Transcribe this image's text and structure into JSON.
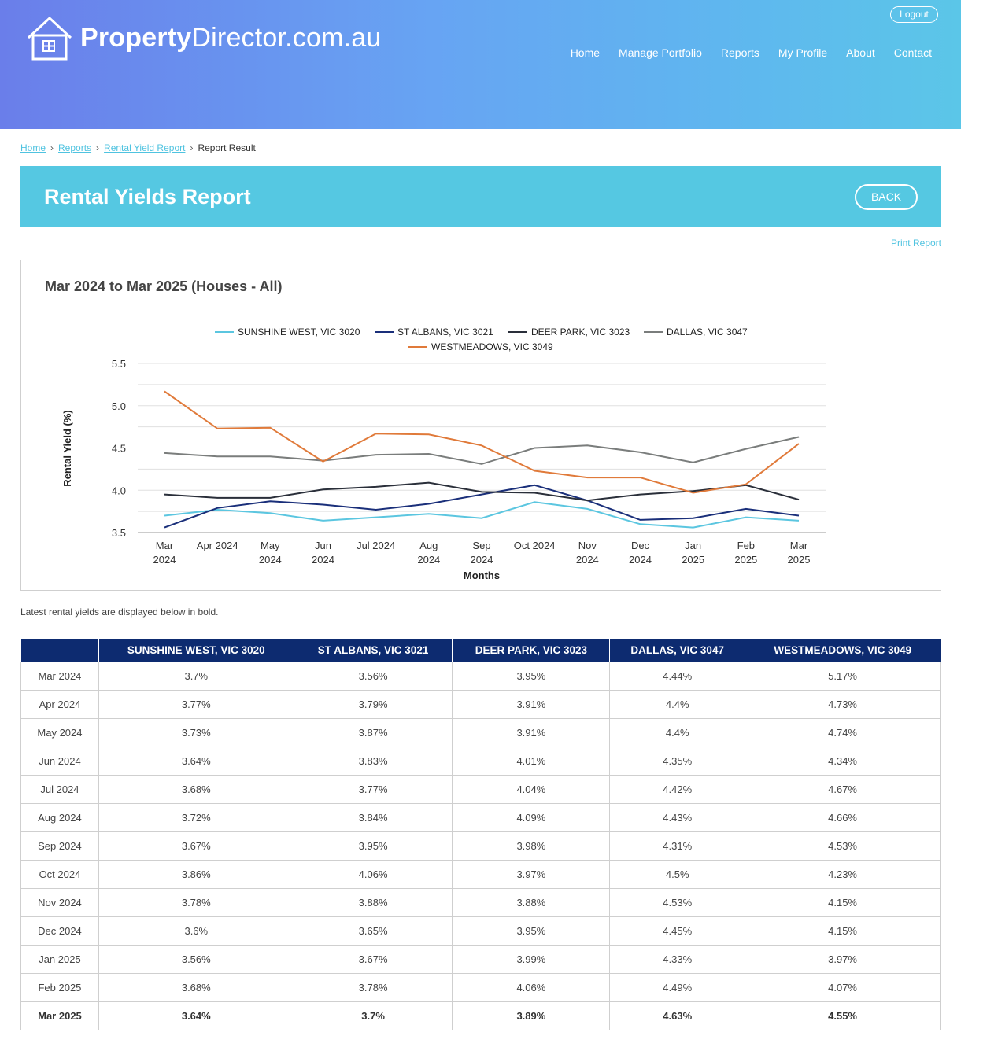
{
  "header": {
    "logo_bold": "Property",
    "logo_rest": "Director.com.au",
    "logout_label": "Logout",
    "nav": [
      "Home",
      "Manage Portfolio",
      "Reports",
      "My Profile",
      "About",
      "Contact"
    ]
  },
  "breadcrumb": {
    "items": [
      "Home",
      "Reports",
      "Rental Yield Report"
    ],
    "current": "Report Result"
  },
  "page": {
    "title": "Rental Yields Report",
    "back_label": "BACK",
    "print_label": "Print Report",
    "note": "Latest rental yields are displayed below in bold."
  },
  "chart_data": {
    "type": "line",
    "title": "Mar 2024 to Mar 2025 (Houses - All)",
    "xlabel": "Months",
    "ylabel": "Rental Yield (%)",
    "ylim": [
      3.5,
      5.5
    ],
    "yticks": [
      "3.5",
      "4.0",
      "4.5",
      "5.0",
      "5.5"
    ],
    "grid": true,
    "legend": "top-center",
    "x": [
      "Mar 2024",
      "Apr 2024",
      "May 2024",
      "Jun 2024",
      "Jul 2024",
      "Aug 2024",
      "Sep 2024",
      "Oct 2024",
      "Nov 2024",
      "Dec 2024",
      "Jan 2025",
      "Feb 2025",
      "Mar 2025"
    ],
    "series": [
      {
        "name": "SUNSHINE WEST, VIC 3020",
        "color": "#5bc6e0",
        "values": [
          3.7,
          3.77,
          3.73,
          3.64,
          3.68,
          3.72,
          3.67,
          3.86,
          3.78,
          3.6,
          3.56,
          3.68,
          3.64
        ]
      },
      {
        "name": "ST ALBANS, VIC 3021",
        "color": "#1a2f7a",
        "values": [
          3.56,
          3.79,
          3.87,
          3.83,
          3.77,
          3.84,
          3.95,
          4.06,
          3.88,
          3.65,
          3.67,
          3.78,
          3.7
        ]
      },
      {
        "name": "DEER PARK, VIC 3023",
        "color": "#2a2f3a",
        "values": [
          3.95,
          3.91,
          3.91,
          4.01,
          4.04,
          4.09,
          3.98,
          3.97,
          3.88,
          3.95,
          3.99,
          4.06,
          3.89
        ]
      },
      {
        "name": "DALLAS, VIC 3047",
        "color": "#7a7d7c",
        "values": [
          4.44,
          4.4,
          4.4,
          4.35,
          4.42,
          4.43,
          4.31,
          4.5,
          4.53,
          4.45,
          4.33,
          4.49,
          4.63
        ]
      },
      {
        "name": "WESTMEADOWS, VIC 3049",
        "color": "#e07a3a",
        "values": [
          5.17,
          4.73,
          4.74,
          4.34,
          4.67,
          4.66,
          4.53,
          4.23,
          4.15,
          4.15,
          3.97,
          4.07,
          4.55
        ]
      }
    ]
  },
  "table": {
    "headers": [
      "",
      "SUNSHINE WEST, VIC 3020",
      "ST ALBANS, VIC 3021",
      "DEER PARK, VIC 3023",
      "DALLAS, VIC 3047",
      "WESTMEADOWS, VIC 3049"
    ],
    "rows": [
      [
        "Mar 2024",
        "3.7%",
        "3.56%",
        "3.95%",
        "4.44%",
        "5.17%"
      ],
      [
        "Apr 2024",
        "3.77%",
        "3.79%",
        "3.91%",
        "4.4%",
        "4.73%"
      ],
      [
        "May 2024",
        "3.73%",
        "3.87%",
        "3.91%",
        "4.4%",
        "4.74%"
      ],
      [
        "Jun 2024",
        "3.64%",
        "3.83%",
        "4.01%",
        "4.35%",
        "4.34%"
      ],
      [
        "Jul 2024",
        "3.68%",
        "3.77%",
        "4.04%",
        "4.42%",
        "4.67%"
      ],
      [
        "Aug 2024",
        "3.72%",
        "3.84%",
        "4.09%",
        "4.43%",
        "4.66%"
      ],
      [
        "Sep 2024",
        "3.67%",
        "3.95%",
        "3.98%",
        "4.31%",
        "4.53%"
      ],
      [
        "Oct 2024",
        "3.86%",
        "4.06%",
        "3.97%",
        "4.5%",
        "4.23%"
      ],
      [
        "Nov 2024",
        "3.78%",
        "3.88%",
        "3.88%",
        "4.53%",
        "4.15%"
      ],
      [
        "Dec 2024",
        "3.6%",
        "3.65%",
        "3.95%",
        "4.45%",
        "4.15%"
      ],
      [
        "Jan 2025",
        "3.56%",
        "3.67%",
        "3.99%",
        "4.33%",
        "3.97%"
      ],
      [
        "Feb 2025",
        "3.68%",
        "3.78%",
        "4.06%",
        "4.49%",
        "4.07%"
      ],
      [
        "Mar 2025",
        "3.64%",
        "3.7%",
        "3.89%",
        "4.63%",
        "4.55%"
      ]
    ]
  }
}
